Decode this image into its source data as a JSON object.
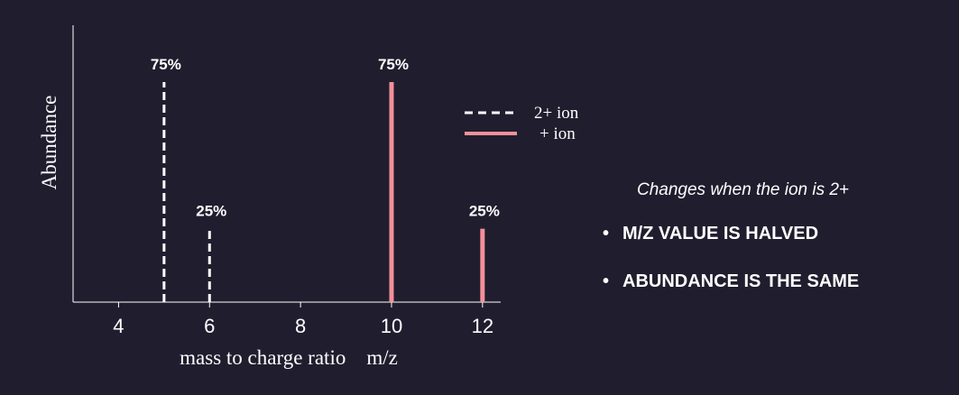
{
  "chart_data": {
    "type": "bar",
    "xlabel": "mass to charge ratio    m/z",
    "ylabel": "Abundance",
    "xlim": [
      3,
      12.4
    ],
    "ylim": [
      0,
      100
    ],
    "x_ticks": [
      4,
      6,
      8,
      10,
      12
    ],
    "grid": false,
    "legend_position": "top-right",
    "series": [
      {
        "name": "2+ ion",
        "style": "dashed",
        "color": "#ffffff",
        "points": [
          {
            "x": 5,
            "y": 75,
            "label": "75%"
          },
          {
            "x": 6,
            "y": 25,
            "label": "25%"
          }
        ]
      },
      {
        "name": "+ ion",
        "style": "solid",
        "color": "#f4909a",
        "points": [
          {
            "x": 10,
            "y": 75,
            "label": "75%"
          },
          {
            "x": 12,
            "y": 25,
            "label": "25%"
          }
        ]
      }
    ]
  },
  "notes": {
    "heading": "Changes when the ion is 2+",
    "bullets": [
      "M/Z VALUE IS HALVED",
      "ABUNDANCE IS THE SAME"
    ]
  }
}
